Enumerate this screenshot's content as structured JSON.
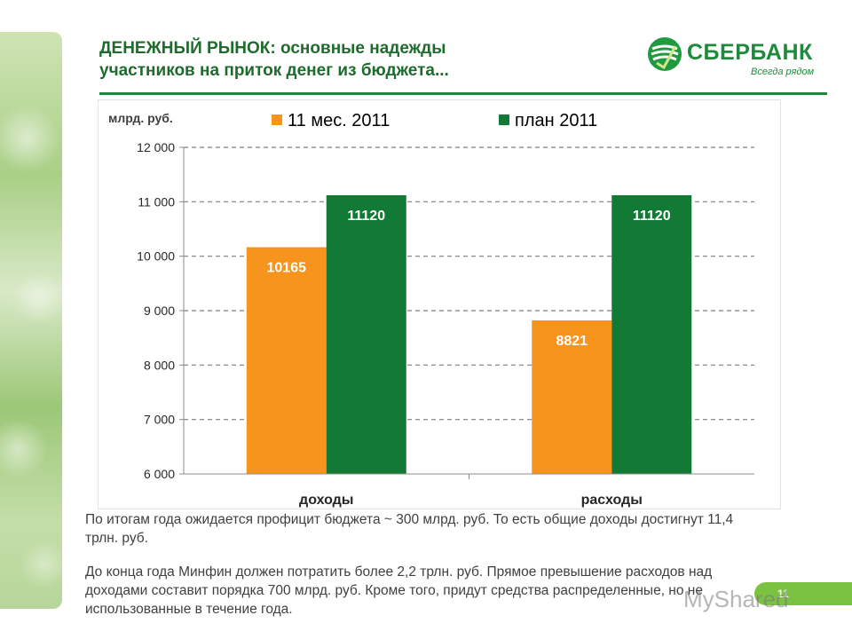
{
  "slide": {
    "title_line1": "ДЕНЕЖНЫЙ РЫНОК: основные надежды",
    "title_line2": "участников на приток денег из бюджета...",
    "page_number": "11",
    "paragraph1": "По итогам года ожидается профицит бюджета ~ 300 млрд. руб. То есть общие доходы достигнут 11,4 трлн. руб.",
    "paragraph2": "До конца года Минфин должен потратить более 2,2 трлн. руб. Прямое превышение расходов над доходами составит порядка 700 млрд. руб. Кроме того, придут средства распределенные, но не использованные в течение года."
  },
  "logo": {
    "name": "СБЕРБАНК",
    "tagline": "Всегда рядом",
    "color": "#1f8a3c"
  },
  "watermark": "MyShared",
  "colors": {
    "accent_green": "#1a8a3a",
    "series_orange": "#f7941d",
    "series_green": "#137a35"
  },
  "chart_data": {
    "type": "bar",
    "title": "",
    "ylabel": "млрд. руб.",
    "xlabel": "",
    "categories": [
      "доходы",
      "расходы"
    ],
    "series": [
      {
        "name": "11 мес. 2011",
        "values": [
          10165,
          8821
        ],
        "labels": [
          "10165",
          "8821"
        ],
        "color": "#f7941d"
      },
      {
        "name": "план 2011",
        "values": [
          11120,
          11120
        ],
        "labels": [
          "11120",
          "11120"
        ],
        "color": "#137a35"
      }
    ],
    "ylim": [
      6000,
      12000
    ],
    "y_ticks": [
      6000,
      7000,
      8000,
      9000,
      10000,
      11000,
      12000
    ],
    "y_tick_labels": [
      "6 000",
      "7 000",
      "8 000",
      "9 000",
      "10 000",
      "11 000",
      "12 000"
    ],
    "grid": true,
    "legend_position": "top"
  }
}
